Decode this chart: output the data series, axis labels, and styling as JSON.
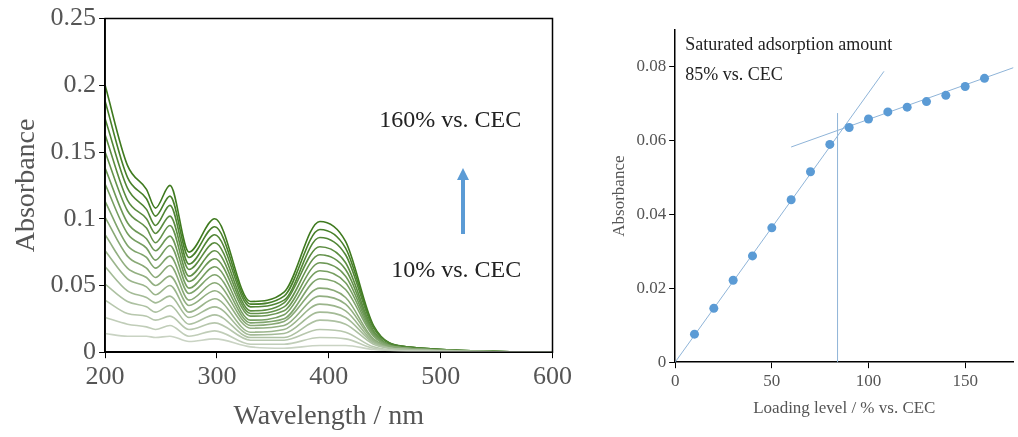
{
  "chart_data": [
    {
      "type": "line",
      "xlabel": "Wavelength / nm",
      "ylabel": "Absorbance",
      "x": [
        200,
        220,
        237,
        245,
        258,
        275,
        298,
        330,
        360,
        392,
        415,
        440,
        470,
        600
      ],
      "xlim": [
        200,
        600
      ],
      "xticks": [
        200,
        300,
        400,
        500,
        600
      ],
      "ylim": [
        0,
        0.25
      ],
      "yticks": [
        0,
        0.05,
        0.1,
        0.15,
        0.2,
        0.25
      ],
      "grid": false,
      "legend": false,
      "marker": "none",
      "annotations": [
        "160% vs. CEC",
        "10% vs. CEC"
      ],
      "series": [
        {
          "color": "#c9d3c3",
          "values": [
            0.014,
            0.012,
            0.012,
            0.011,
            0.012,
            0.008,
            0.01,
            0.004,
            0.003,
            0.005,
            0.005,
            0.002,
            0.001,
            0
          ]
        },
        {
          "color": "#c0cdb8",
          "values": [
            0.026,
            0.021,
            0.019,
            0.017,
            0.02,
            0.012,
            0.016,
            0.006,
            0.006,
            0.011,
            0.01,
            0.003,
            0.001,
            0
          ]
        },
        {
          "color": "#b7c7ad",
          "values": [
            0.039,
            0.029,
            0.027,
            0.024,
            0.027,
            0.017,
            0.022,
            0.009,
            0.009,
            0.017,
            0.015,
            0.004,
            0.001,
            0
          ]
        },
        {
          "color": "#adc1a2",
          "values": [
            0.051,
            0.038,
            0.034,
            0.03,
            0.035,
            0.021,
            0.028,
            0.011,
            0.011,
            0.024,
            0.021,
            0.006,
            0.002,
            0
          ]
        },
        {
          "color": "#a4bb97",
          "values": [
            0.064,
            0.046,
            0.041,
            0.037,
            0.042,
            0.026,
            0.034,
            0.013,
            0.014,
            0.03,
            0.026,
            0.007,
            0.002,
            0
          ]
        },
        {
          "color": "#9bb58c",
          "values": [
            0.076,
            0.055,
            0.049,
            0.043,
            0.05,
            0.03,
            0.04,
            0.015,
            0.017,
            0.036,
            0.031,
            0.008,
            0.002,
            0
          ]
        },
        {
          "color": "#92af81",
          "values": [
            0.088,
            0.063,
            0.056,
            0.05,
            0.057,
            0.035,
            0.046,
            0.018,
            0.02,
            0.042,
            0.036,
            0.009,
            0.002,
            0
          ]
        },
        {
          "color": "#89a976",
          "values": [
            0.101,
            0.072,
            0.063,
            0.056,
            0.065,
            0.039,
            0.052,
            0.02,
            0.023,
            0.048,
            0.041,
            0.01,
            0.003,
            0
          ]
        },
        {
          "color": "#7fa46c",
          "values": [
            0.113,
            0.08,
            0.071,
            0.063,
            0.072,
            0.044,
            0.058,
            0.022,
            0.025,
            0.055,
            0.047,
            0.012,
            0.003,
            0
          ]
        },
        {
          "color": "#769e61",
          "values": [
            0.126,
            0.089,
            0.078,
            0.069,
            0.08,
            0.048,
            0.064,
            0.024,
            0.028,
            0.061,
            0.052,
            0.013,
            0.003,
            0
          ]
        },
        {
          "color": "#6d9856",
          "values": [
            0.138,
            0.097,
            0.085,
            0.076,
            0.087,
            0.053,
            0.07,
            0.027,
            0.031,
            0.067,
            0.057,
            0.014,
            0.003,
            0
          ]
        },
        {
          "color": "#64924b",
          "values": [
            0.15,
            0.106,
            0.093,
            0.082,
            0.095,
            0.057,
            0.076,
            0.029,
            0.034,
            0.073,
            0.062,
            0.015,
            0.003,
            0
          ]
        },
        {
          "color": "#5b8c40",
          "values": [
            0.163,
            0.114,
            0.1,
            0.089,
            0.102,
            0.062,
            0.082,
            0.031,
            0.037,
            0.079,
            0.067,
            0.016,
            0.003,
            0
          ]
        },
        {
          "color": "#518635",
          "values": [
            0.175,
            0.123,
            0.107,
            0.095,
            0.11,
            0.066,
            0.088,
            0.034,
            0.039,
            0.086,
            0.073,
            0.018,
            0.004,
            0
          ]
        },
        {
          "color": "#48802a",
          "values": [
            0.188,
            0.131,
            0.115,
            0.102,
            0.117,
            0.071,
            0.094,
            0.036,
            0.042,
            0.092,
            0.078,
            0.019,
            0.004,
            0
          ]
        },
        {
          "color": "#3f7a1f",
          "values": [
            0.2,
            0.14,
            0.122,
            0.108,
            0.125,
            0.075,
            0.1,
            0.038,
            0.045,
            0.098,
            0.083,
            0.02,
            0.004,
            0
          ]
        }
      ]
    },
    {
      "type": "scatter",
      "xlabel": "Loading level / % vs. CEC",
      "ylabel": "Absorbance",
      "xlim": [
        0,
        175
      ],
      "xticks": [
        0,
        50,
        100,
        150
      ],
      "ylim": [
        0,
        0.09
      ],
      "yticks": [
        0,
        0.02,
        0.04,
        0.06,
        0.08
      ],
      "grid": false,
      "legend": false,
      "marker": "circle",
      "annotations": [
        "Saturated adsorption amount",
        "85% vs. CEC"
      ],
      "ref_lines": [
        {
          "axis": "x",
          "value": 84,
          "color": "#8fb4d8"
        }
      ],
      "series": [
        {
          "color": "#5b9bd5",
          "x": [
            10,
            20,
            30,
            40,
            50,
            60,
            70,
            80,
            90,
            100,
            110,
            120,
            130,
            140,
            150,
            160
          ],
          "values": [
            0.0076,
            0.0146,
            0.0222,
            0.0288,
            0.0364,
            0.044,
            0.0516,
            0.059,
            0.0636,
            0.0659,
            0.0678,
            0.0691,
            0.0706,
            0.0723,
            0.0747,
            0.0769
          ]
        },
        {
          "type": "line",
          "marker": "none",
          "color": "#8fb4d8",
          "x": [
            0,
            108
          ],
          "values": [
            0,
            0.0788
          ]
        },
        {
          "type": "line",
          "marker": "none",
          "color": "#8fb4d8",
          "x": [
            60,
            175
          ],
          "values": [
            0.0583,
            0.0798
          ]
        }
      ]
    }
  ]
}
